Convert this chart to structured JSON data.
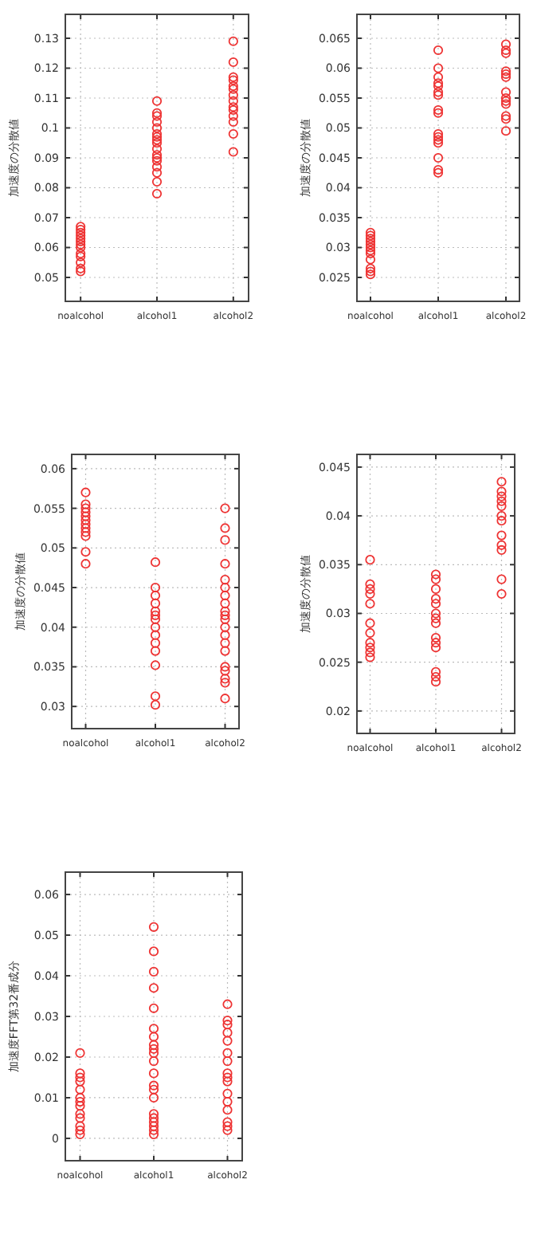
{
  "chart_data": [
    {
      "type": "scatter",
      "ylabel": "加速度の分散値",
      "categories": [
        "noalcohol",
        "alcohol1",
        "alcohol2"
      ],
      "ylim": [
        0.042,
        0.138
      ],
      "yticks": [
        0.05,
        0.06,
        0.07,
        0.08,
        0.09,
        0.1,
        0.11,
        0.12,
        0.13
      ],
      "grid": true,
      "marker": "circle",
      "series": [
        {
          "color": "#ee3333",
          "x": [
            "noalcohol",
            "noalcohol",
            "noalcohol",
            "noalcohol",
            "noalcohol",
            "noalcohol",
            "noalcohol",
            "noalcohol",
            "noalcohol",
            "noalcohol",
            "noalcohol",
            "noalcohol",
            "noalcohol"
          ],
          "values": [
            0.052,
            0.053,
            0.055,
            0.057,
            0.058,
            0.06,
            0.061,
            0.062,
            0.063,
            0.064,
            0.065,
            0.066,
            0.067
          ]
        },
        {
          "color": "#ee3333",
          "x": [
            "alcohol1",
            "alcohol1",
            "alcohol1",
            "alcohol1",
            "alcohol1",
            "alcohol1",
            "alcohol1",
            "alcohol1",
            "alcohol1",
            "alcohol1",
            "alcohol1",
            "alcohol1",
            "alcohol1",
            "alcohol1",
            "alcohol1",
            "alcohol1",
            "alcohol1"
          ],
          "values": [
            0.078,
            0.082,
            0.085,
            0.087,
            0.089,
            0.09,
            0.091,
            0.093,
            0.095,
            0.096,
            0.097,
            0.098,
            0.1,
            0.102,
            0.104,
            0.105,
            0.109
          ]
        },
        {
          "color": "#ee3333",
          "x": [
            "alcohol2",
            "alcohol2",
            "alcohol2",
            "alcohol2",
            "alcohol2",
            "alcohol2",
            "alcohol2",
            "alcohol2",
            "alcohol2",
            "alcohol2",
            "alcohol2",
            "alcohol2",
            "alcohol2",
            "alcohol2"
          ],
          "values": [
            0.092,
            0.098,
            0.102,
            0.104,
            0.106,
            0.107,
            0.109,
            0.111,
            0.113,
            0.114,
            0.116,
            0.117,
            0.122,
            0.129
          ]
        }
      ]
    },
    {
      "type": "scatter",
      "ylabel": "加速度の分散値",
      "categories": [
        "noalcohol",
        "alcohol1",
        "alcohol2"
      ],
      "ylim": [
        0.021,
        0.069
      ],
      "yticks": [
        0.025,
        0.03,
        0.035,
        0.04,
        0.045,
        0.05,
        0.055,
        0.06,
        0.065
      ],
      "grid": true,
      "marker": "circle",
      "series": [
        {
          "color": "#ee3333",
          "x": [
            "noalcohol",
            "noalcohol",
            "noalcohol",
            "noalcohol",
            "noalcohol",
            "noalcohol",
            "noalcohol",
            "noalcohol",
            "noalcohol",
            "noalcohol",
            "noalcohol",
            "noalcohol"
          ],
          "values": [
            0.0255,
            0.026,
            0.0265,
            0.028,
            0.029,
            0.0295,
            0.03,
            0.0305,
            0.031,
            0.0315,
            0.032,
            0.0325
          ]
        },
        {
          "color": "#ee3333",
          "x": [
            "alcohol1",
            "alcohol1",
            "alcohol1",
            "alcohol1",
            "alcohol1",
            "alcohol1",
            "alcohol1",
            "alcohol1",
            "alcohol1",
            "alcohol1",
            "alcohol1",
            "alcohol1",
            "alcohol1",
            "alcohol1",
            "alcohol1",
            "alcohol1"
          ],
          "values": [
            0.0425,
            0.043,
            0.045,
            0.0475,
            0.048,
            0.0485,
            0.049,
            0.0525,
            0.053,
            0.0555,
            0.056,
            0.057,
            0.0575,
            0.0585,
            0.06,
            0.063
          ]
        },
        {
          "color": "#ee3333",
          "x": [
            "alcohol2",
            "alcohol2",
            "alcohol2",
            "alcohol2",
            "alcohol2",
            "alcohol2",
            "alcohol2",
            "alcohol2",
            "alcohol2",
            "alcohol2",
            "alcohol2",
            "alcohol2",
            "alcohol2"
          ],
          "values": [
            0.0495,
            0.0515,
            0.052,
            0.054,
            0.0545,
            0.055,
            0.056,
            0.0585,
            0.059,
            0.0595,
            0.0625,
            0.063,
            0.064
          ]
        }
      ]
    },
    {
      "type": "scatter",
      "ylabel": "加速度の分散値",
      "categories": [
        "noalcohol",
        "alcohol1",
        "alcohol2"
      ],
      "ylim": [
        0.0272,
        0.0618
      ],
      "yticks": [
        0.03,
        0.035,
        0.04,
        0.045,
        0.05,
        0.055,
        0.06
      ],
      "grid": true,
      "marker": "circle",
      "series": [
        {
          "color": "#ee3333",
          "x": [
            "noalcohol",
            "noalcohol",
            "noalcohol",
            "noalcohol",
            "noalcohol",
            "noalcohol",
            "noalcohol",
            "noalcohol",
            "noalcohol",
            "noalcohol",
            "noalcohol",
            "noalcohol"
          ],
          "values": [
            0.048,
            0.0495,
            0.0515,
            0.052,
            0.0525,
            0.053,
            0.0535,
            0.054,
            0.0545,
            0.055,
            0.0555,
            0.057
          ]
        },
        {
          "color": "#ee3333",
          "x": [
            "alcohol1",
            "alcohol1",
            "alcohol1",
            "alcohol1",
            "alcohol1",
            "alcohol1",
            "alcohol1",
            "alcohol1",
            "alcohol1",
            "alcohol1",
            "alcohol1",
            "alcohol1",
            "alcohol1",
            "alcohol1"
          ],
          "values": [
            0.0302,
            0.0313,
            0.0352,
            0.037,
            0.038,
            0.039,
            0.04,
            0.041,
            0.0415,
            0.042,
            0.043,
            0.044,
            0.045,
            0.0482
          ]
        },
        {
          "color": "#ee3333",
          "x": [
            "alcohol2",
            "alcohol2",
            "alcohol2",
            "alcohol2",
            "alcohol2",
            "alcohol2",
            "alcohol2",
            "alcohol2",
            "alcohol2",
            "alcohol2",
            "alcohol2",
            "alcohol2",
            "alcohol2",
            "alcohol2",
            "alcohol2",
            "alcohol2",
            "alcohol2",
            "alcohol2",
            "alcohol2",
            "alcohol2"
          ],
          "values": [
            0.031,
            0.033,
            0.0335,
            0.0345,
            0.035,
            0.037,
            0.038,
            0.039,
            0.04,
            0.041,
            0.0415,
            0.042,
            0.043,
            0.044,
            0.045,
            0.046,
            0.048,
            0.051,
            0.0525,
            0.055
          ]
        }
      ]
    },
    {
      "type": "scatter",
      "ylabel": "加速度の分散値",
      "categories": [
        "noalcohol",
        "alcohol1",
        "alcohol2"
      ],
      "ylim": [
        0.0177,
        0.0463
      ],
      "yticks": [
        0.02,
        0.025,
        0.03,
        0.035,
        0.04,
        0.045
      ],
      "grid": true,
      "marker": "circle",
      "series": [
        {
          "color": "#ee3333",
          "x": [
            "noalcohol",
            "noalcohol",
            "noalcohol",
            "noalcohol",
            "noalcohol",
            "noalcohol",
            "noalcohol",
            "noalcohol",
            "noalcohol",
            "noalcohol",
            "noalcohol"
          ],
          "values": [
            0.0255,
            0.026,
            0.0265,
            0.027,
            0.028,
            0.029,
            0.031,
            0.032,
            0.0325,
            0.033,
            0.0355
          ]
        },
        {
          "color": "#ee3333",
          "x": [
            "alcohol1",
            "alcohol1",
            "alcohol1",
            "alcohol1",
            "alcohol1",
            "alcohol1",
            "alcohol1",
            "alcohol1",
            "alcohol1",
            "alcohol1",
            "alcohol1",
            "alcohol1",
            "alcohol1",
            "alcohol1"
          ],
          "values": [
            0.023,
            0.0235,
            0.024,
            0.0265,
            0.027,
            0.0275,
            0.029,
            0.0295,
            0.03,
            0.031,
            0.0315,
            0.0325,
            0.0335,
            0.034
          ]
        },
        {
          "color": "#ee3333",
          "x": [
            "alcohol2",
            "alcohol2",
            "alcohol2",
            "alcohol2",
            "alcohol2",
            "alcohol2",
            "alcohol2",
            "alcohol2",
            "alcohol2",
            "alcohol2",
            "alcohol2",
            "alcohol2"
          ],
          "values": [
            0.032,
            0.0335,
            0.0365,
            0.037,
            0.038,
            0.0395,
            0.04,
            0.041,
            0.0415,
            0.042,
            0.0425,
            0.0435
          ]
        }
      ]
    },
    {
      "type": "scatter",
      "ylabel": "加速度FFT第32番成分",
      "categories": [
        "noalcohol",
        "alcohol1",
        "alcohol2"
      ],
      "ylim": [
        -0.0055,
        0.0655
      ],
      "yticks": [
        0,
        0.01,
        0.02,
        0.03,
        0.04,
        0.05,
        0.06
      ],
      "grid": true,
      "marker": "circle",
      "series": [
        {
          "color": "#ee3333",
          "x": [
            "noalcohol",
            "noalcohol",
            "noalcohol",
            "noalcohol",
            "noalcohol",
            "noalcohol",
            "noalcohol",
            "noalcohol",
            "noalcohol",
            "noalcohol",
            "noalcohol",
            "noalcohol",
            "noalcohol"
          ],
          "values": [
            0.001,
            0.002,
            0.003,
            0.005,
            0.006,
            0.008,
            0.009,
            0.01,
            0.012,
            0.014,
            0.015,
            0.016,
            0.021
          ]
        },
        {
          "color": "#ee3333",
          "x": [
            "alcohol1",
            "alcohol1",
            "alcohol1",
            "alcohol1",
            "alcohol1",
            "alcohol1",
            "alcohol1",
            "alcohol1",
            "alcohol1",
            "alcohol1",
            "alcohol1",
            "alcohol1",
            "alcohol1",
            "alcohol1",
            "alcohol1",
            "alcohol1",
            "alcohol1",
            "alcohol1",
            "alcohol1",
            "alcohol1",
            "alcohol1"
          ],
          "values": [
            0.001,
            0.002,
            0.003,
            0.004,
            0.005,
            0.006,
            0.01,
            0.012,
            0.013,
            0.016,
            0.019,
            0.021,
            0.022,
            0.023,
            0.025,
            0.027,
            0.032,
            0.037,
            0.041,
            0.046,
            0.052
          ]
        },
        {
          "color": "#ee3333",
          "x": [
            "alcohol2",
            "alcohol2",
            "alcohol2",
            "alcohol2",
            "alcohol2",
            "alcohol2",
            "alcohol2",
            "alcohol2",
            "alcohol2",
            "alcohol2",
            "alcohol2",
            "alcohol2",
            "alcohol2",
            "alcohol2",
            "alcohol2",
            "alcohol2"
          ],
          "values": [
            0.002,
            0.003,
            0.004,
            0.007,
            0.009,
            0.011,
            0.014,
            0.015,
            0.016,
            0.019,
            0.021,
            0.024,
            0.026,
            0.028,
            0.029,
            0.033
          ]
        }
      ]
    }
  ]
}
